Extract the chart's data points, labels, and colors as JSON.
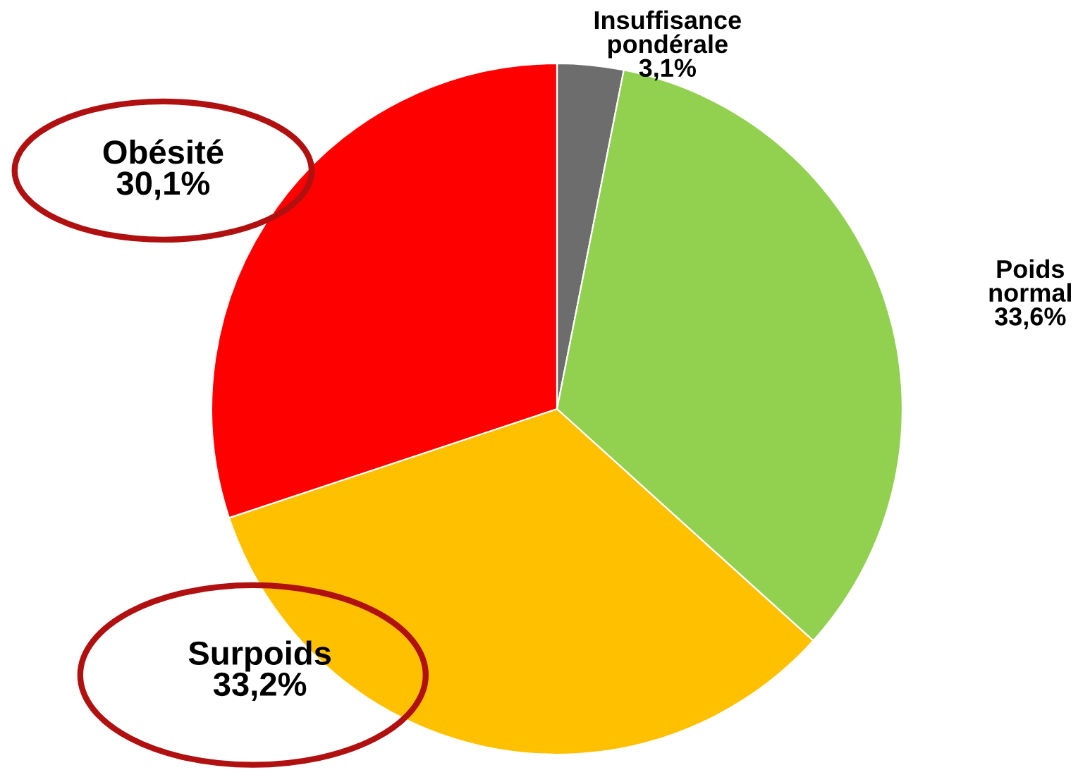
{
  "chart_data": {
    "type": "pie",
    "categories": [
      "Insuffisance\npondérale",
      "Poids\nnormal",
      "Surpoids",
      "Obésité"
    ],
    "values": [
      3.1,
      33.6,
      33.2,
      30.1
    ],
    "value_labels": [
      "3,1%",
      "33,6%",
      "33,2%",
      "30,1%"
    ],
    "colors": [
      "#6d6d6d",
      "#92d050",
      "#ffc000",
      "#ff0000"
    ]
  }
}
